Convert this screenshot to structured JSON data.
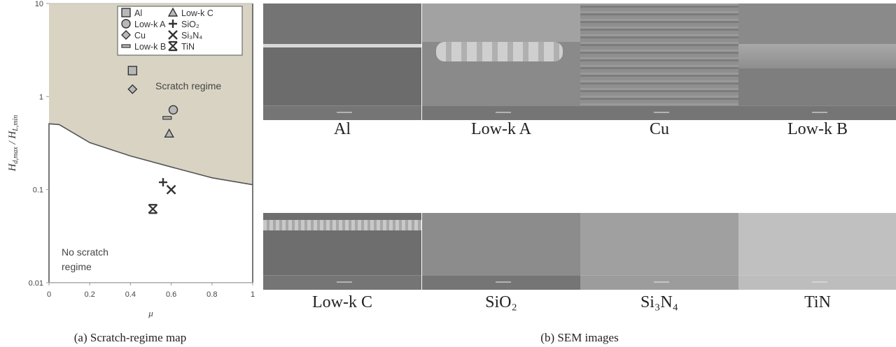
{
  "chart_data": {
    "type": "scatter",
    "xlabel": "μ",
    "ylabel": "H_d,max / H_L,min",
    "ylabel_main1": "H",
    "ylabel_sub1": "d,max",
    "ylabel_sep": " / H",
    "ylabel_sub2": "L,min",
    "xlim": [
      0,
      1
    ],
    "ylim": [
      0.01,
      10
    ],
    "yscale": "log",
    "xticks": [
      "0",
      "0.2",
      "0.4",
      "0.6",
      "0.8",
      "1"
    ],
    "yticks": [
      "0.01",
      "0.1",
      "1",
      "10"
    ],
    "grid": false,
    "legend_position": "top-right",
    "series": [
      {
        "name": "Al",
        "marker": "square",
        "x": 0.41,
        "y": 1.9
      },
      {
        "name": "Low-k A",
        "marker": "circle",
        "x": 0.61,
        "y": 0.72
      },
      {
        "name": "Cu",
        "marker": "diamond",
        "x": 0.41,
        "y": 1.2
      },
      {
        "name": "Low-k B",
        "marker": "dash",
        "x": 0.58,
        "y": 0.59
      },
      {
        "name": "Low-k C",
        "marker": "triangle",
        "x": 0.59,
        "y": 0.4
      },
      {
        "name": "SiO₂",
        "marker": "plus",
        "x": 0.56,
        "y": 0.12
      },
      {
        "name": "Si₃N₄",
        "marker": "x",
        "x": 0.6,
        "y": 0.1
      },
      {
        "name": "TiN",
        "marker": "asterisk",
        "x": 0.51,
        "y": 0.062
      }
    ],
    "boundary": {
      "x": [
        0,
        0.05,
        0.2,
        0.4,
        0.6,
        0.8,
        1.0
      ],
      "y": [
        0.51,
        0.5,
        0.32,
        0.23,
        0.175,
        0.134,
        0.113
      ]
    },
    "annotations": [
      "Scratch regime",
      "No scratch",
      "regime"
    ],
    "colors": {
      "scratch_fill": "#d8d3c3",
      "marker_fill": "#b8b8b8",
      "line": "#555555"
    }
  },
  "captions": {
    "a": "(a) Scratch-regime map",
    "b": "(b) SEM images"
  },
  "sem_images": [
    {
      "label": "Al",
      "feature": "thin-line"
    },
    {
      "label": "Low-k A",
      "feature": "rough-band"
    },
    {
      "label": "Cu",
      "feature": "striations"
    },
    {
      "label": "Low-k B",
      "feature": "upper-band"
    },
    {
      "label": "Low-k C",
      "feature": "bright-band"
    },
    {
      "label": "SiO₂",
      "feature": "plain"
    },
    {
      "label": "Si₃N₄",
      "feature": "plain-light"
    },
    {
      "label": "TiN",
      "feature": "plain-lighter"
    }
  ]
}
